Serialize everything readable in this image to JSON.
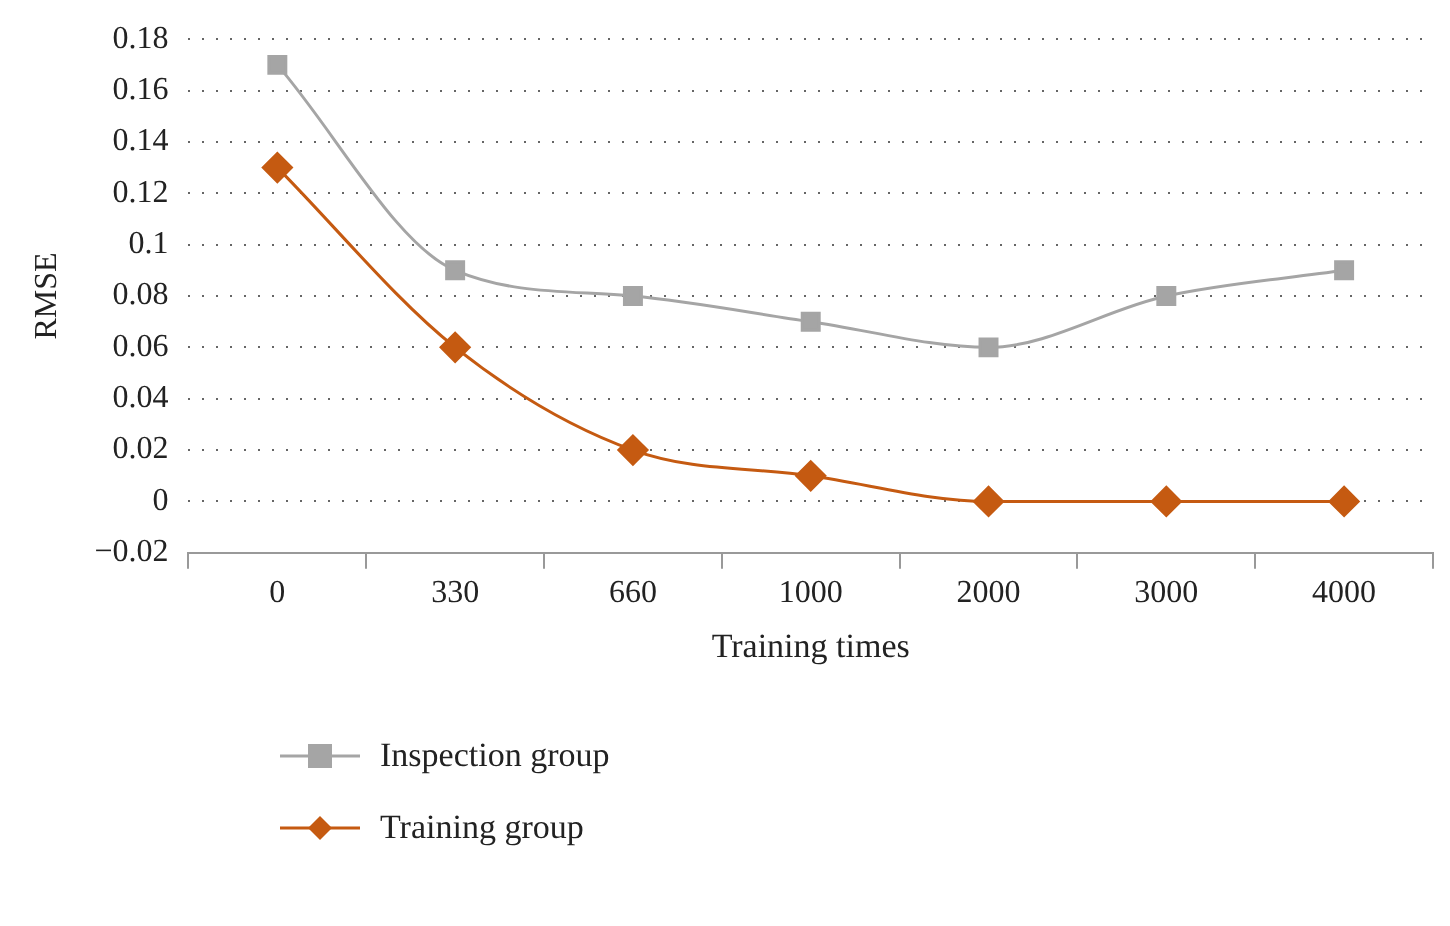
{
  "chart_data": {
    "type": "line",
    "xlabel": "Training times",
    "ylabel": "RMSE",
    "categories": [
      "0",
      "330",
      "660",
      "1000",
      "2000",
      "3000",
      "4000"
    ],
    "series": [
      {
        "name": "Inspection group",
        "color": "#a5a5a5",
        "marker": "square",
        "values": [
          0.17,
          0.09,
          0.08,
          0.07,
          0.06,
          0.08,
          0.09
        ]
      },
      {
        "name": "Training group",
        "color": "#c55a11",
        "marker": "diamond",
        "values": [
          0.13,
          0.06,
          0.02,
          0.01,
          0,
          0,
          0
        ]
      }
    ],
    "ylim": [
      -0.02,
      0.18
    ],
    "yticks": [
      {
        "value": -0.02,
        "label": "−0.02"
      },
      0,
      0.02,
      0.04,
      0.06,
      0.08,
      0.1,
      0.12,
      0.14,
      0.16,
      0.18
    ],
    "grid": "y",
    "legend": "bottom left",
    "line_style": "solid"
  }
}
